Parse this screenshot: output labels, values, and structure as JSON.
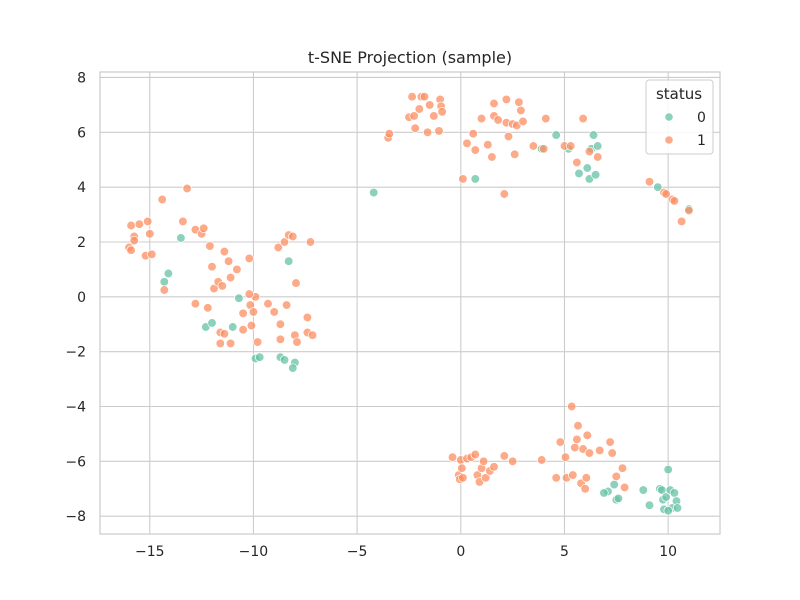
{
  "chart_data": {
    "type": "scatter",
    "title": "t-SNE Projection (sample)",
    "xlabel": "",
    "ylabel": "",
    "xlim": [
      -17.4,
      12.5
    ],
    "ylim": [
      -8.65,
      8.2
    ],
    "xticks": [
      -15,
      -10,
      -5,
      0,
      5,
      10
    ],
    "yticks": [
      -8,
      -6,
      -4,
      -2,
      0,
      2,
      4,
      6,
      8
    ],
    "xtick_labels": [
      "−15",
      "−10",
      "−5",
      "0",
      "5",
      "10"
    ],
    "ytick_labels": [
      "−8",
      "−6",
      "−4",
      "−2",
      "0",
      "2",
      "4",
      "6",
      "8"
    ],
    "grid": true,
    "legend": {
      "title": "status",
      "position": "top-right"
    },
    "series": [
      {
        "name": "0",
        "color": "#66c2a5",
        "points": [
          [
            -13.5,
            2.15
          ],
          [
            -14.1,
            0.85
          ],
          [
            -14.3,
            0.55
          ],
          [
            -12.3,
            -1.1
          ],
          [
            -12.0,
            -0.95
          ],
          [
            -11.0,
            -1.1
          ],
          [
            -10.7,
            -0.05
          ],
          [
            -9.9,
            -2.25
          ],
          [
            -9.7,
            -2.2
          ],
          [
            -8.7,
            -2.2
          ],
          [
            -8.5,
            -2.3
          ],
          [
            -8.0,
            -2.4
          ],
          [
            -8.1,
            -2.6
          ],
          [
            -8.3,
            1.3
          ],
          [
            -4.2,
            3.8
          ],
          [
            0.7,
            4.3
          ],
          [
            3.9,
            5.4
          ],
          [
            4.6,
            5.9
          ],
          [
            5.2,
            5.4
          ],
          [
            5.7,
            4.5
          ],
          [
            6.1,
            4.7
          ],
          [
            6.2,
            4.3
          ],
          [
            6.3,
            5.4
          ],
          [
            6.4,
            5.9
          ],
          [
            6.5,
            4.45
          ],
          [
            6.6,
            5.5
          ],
          [
            9.5,
            4.0
          ],
          [
            11.0,
            3.2
          ],
          [
            7.1,
            -7.1
          ],
          [
            7.4,
            -6.85
          ],
          [
            7.5,
            -7.4
          ],
          [
            7.6,
            -7.35
          ],
          [
            6.9,
            -7.15
          ],
          [
            8.8,
            -7.05
          ],
          [
            9.1,
            -7.6
          ],
          [
            9.6,
            -7.0
          ],
          [
            9.7,
            -7.05
          ],
          [
            9.75,
            -7.4
          ],
          [
            9.9,
            -7.3
          ],
          [
            10.0,
            -6.3
          ],
          [
            10.1,
            -7.05
          ],
          [
            10.2,
            -7.7
          ],
          [
            10.3,
            -7.15
          ],
          [
            10.4,
            -7.45
          ],
          [
            10.45,
            -7.7
          ],
          [
            9.8,
            -7.75
          ],
          [
            10.0,
            -7.8
          ]
        ]
      },
      {
        "name": "1",
        "color": "#fc8d62",
        "points": [
          [
            -16.0,
            1.8
          ],
          [
            -15.9,
            1.7
          ],
          [
            -15.9,
            2.6
          ],
          [
            -15.75,
            2.2
          ],
          [
            -15.75,
            2.05
          ],
          [
            -15.5,
            2.65
          ],
          [
            -15.2,
            1.5
          ],
          [
            -15.1,
            2.75
          ],
          [
            -15.0,
            2.3
          ],
          [
            -14.9,
            1.55
          ],
          [
            -14.4,
            3.55
          ],
          [
            -14.3,
            0.25
          ],
          [
            -13.4,
            2.75
          ],
          [
            -13.2,
            3.95
          ],
          [
            -12.8,
            2.45
          ],
          [
            -12.8,
            -0.25
          ],
          [
            -12.5,
            2.3
          ],
          [
            -12.4,
            2.5
          ],
          [
            -12.2,
            -0.4
          ],
          [
            -12.1,
            1.85
          ],
          [
            -12.0,
            1.1
          ],
          [
            -11.9,
            0.3
          ],
          [
            -11.7,
            0.55
          ],
          [
            -11.6,
            -1.3
          ],
          [
            -11.6,
            -1.7
          ],
          [
            -11.5,
            0.4
          ],
          [
            -11.4,
            -1.35
          ],
          [
            -11.4,
            1.65
          ],
          [
            -11.2,
            1.3
          ],
          [
            -11.1,
            -1.7
          ],
          [
            -11.1,
            0.7
          ],
          [
            -10.8,
            1.0
          ],
          [
            -10.5,
            -1.2
          ],
          [
            -10.5,
            -0.6
          ],
          [
            -10.2,
            1.4
          ],
          [
            -10.15,
            -0.3
          ],
          [
            -10.1,
            -1.05
          ],
          [
            -10.0,
            -0.55
          ],
          [
            -9.9,
            0.0
          ],
          [
            -10.2,
            0.1
          ],
          [
            -9.8,
            -1.65
          ],
          [
            -9.3,
            -0.25
          ],
          [
            -9.0,
            -0.55
          ],
          [
            -8.8,
            1.8
          ],
          [
            -8.7,
            -1.0
          ],
          [
            -8.7,
            -1.55
          ],
          [
            -8.5,
            2.0
          ],
          [
            -8.4,
            -0.3
          ],
          [
            -8.3,
            2.25
          ],
          [
            -8.1,
            2.2
          ],
          [
            -8.0,
            -1.4
          ],
          [
            -7.9,
            -1.65
          ],
          [
            -7.95,
            0.5
          ],
          [
            -7.4,
            -0.75
          ],
          [
            -7.4,
            -1.3
          ],
          [
            -7.25,
            2.0
          ],
          [
            -7.15,
            -1.4
          ],
          [
            -3.5,
            5.8
          ],
          [
            -3.45,
            5.95
          ],
          [
            -2.5,
            6.55
          ],
          [
            -2.35,
            7.3
          ],
          [
            -2.25,
            6.6
          ],
          [
            -2.2,
            6.15
          ],
          [
            -2.0,
            6.85
          ],
          [
            -1.9,
            7.3
          ],
          [
            -1.75,
            7.3
          ],
          [
            -1.6,
            6.0
          ],
          [
            -1.5,
            7.0
          ],
          [
            -1.3,
            6.6
          ],
          [
            -1.0,
            7.2
          ],
          [
            -1.05,
            6.05
          ],
          [
            -0.95,
            6.95
          ],
          [
            -0.9,
            6.75
          ],
          [
            0.1,
            4.3
          ],
          [
            0.3,
            5.6
          ],
          [
            0.6,
            5.95
          ],
          [
            0.7,
            5.35
          ],
          [
            1.0,
            6.5
          ],
          [
            1.3,
            5.55
          ],
          [
            1.5,
            5.1
          ],
          [
            1.6,
            6.6
          ],
          [
            1.6,
            7.05
          ],
          [
            1.8,
            6.45
          ],
          [
            2.1,
            3.75
          ],
          [
            2.2,
            6.35
          ],
          [
            2.2,
            7.2
          ],
          [
            2.3,
            5.85
          ],
          [
            2.5,
            6.3
          ],
          [
            2.6,
            5.2
          ],
          [
            2.7,
            6.25
          ],
          [
            2.8,
            7.1
          ],
          [
            2.9,
            6.8
          ],
          [
            3.0,
            6.4
          ],
          [
            3.5,
            5.5
          ],
          [
            4.1,
            6.5
          ],
          [
            4.0,
            5.4
          ],
          [
            5.0,
            5.5
          ],
          [
            5.3,
            5.5
          ],
          [
            5.6,
            4.9
          ],
          [
            5.9,
            6.5
          ],
          [
            6.2,
            5.3
          ],
          [
            6.6,
            5.1
          ],
          [
            9.1,
            4.2
          ],
          [
            9.8,
            3.8
          ],
          [
            9.9,
            3.75
          ],
          [
            10.2,
            3.55
          ],
          [
            10.3,
            3.5
          ],
          [
            10.65,
            2.75
          ],
          [
            11.0,
            3.15
          ],
          [
            -0.4,
            -5.85
          ],
          [
            -0.1,
            -6.5
          ],
          [
            -0.05,
            -6.65
          ],
          [
            0.0,
            -5.95
          ],
          [
            0.05,
            -6.25
          ],
          [
            0.1,
            -6.6
          ],
          [
            0.3,
            -5.9
          ],
          [
            0.5,
            -5.85
          ],
          [
            0.7,
            -5.75
          ],
          [
            0.8,
            -6.5
          ],
          [
            0.9,
            -6.75
          ],
          [
            1.0,
            -6.25
          ],
          [
            1.1,
            -6.0
          ],
          [
            1.2,
            -6.6
          ],
          [
            1.4,
            -6.35
          ],
          [
            1.6,
            -6.2
          ],
          [
            2.1,
            -5.8
          ],
          [
            2.5,
            -6.0
          ],
          [
            3.9,
            -5.95
          ],
          [
            4.6,
            -6.6
          ],
          [
            4.8,
            -5.3
          ],
          [
            5.05,
            -5.85
          ],
          [
            5.1,
            -6.6
          ],
          [
            5.35,
            -4.0
          ],
          [
            5.4,
            -6.5
          ],
          [
            5.5,
            -5.5
          ],
          [
            5.6,
            -5.2
          ],
          [
            5.65,
            -4.7
          ],
          [
            5.8,
            -6.8
          ],
          [
            5.9,
            -5.55
          ],
          [
            6.0,
            -7.0
          ],
          [
            6.05,
            -6.6
          ],
          [
            6.1,
            -5.05
          ],
          [
            6.2,
            -5.7
          ],
          [
            6.7,
            -5.6
          ],
          [
            7.2,
            -5.3
          ],
          [
            7.3,
            -5.7
          ],
          [
            7.5,
            -6.55
          ],
          [
            7.8,
            -6.25
          ],
          [
            7.9,
            -6.95
          ]
        ]
      }
    ]
  }
}
